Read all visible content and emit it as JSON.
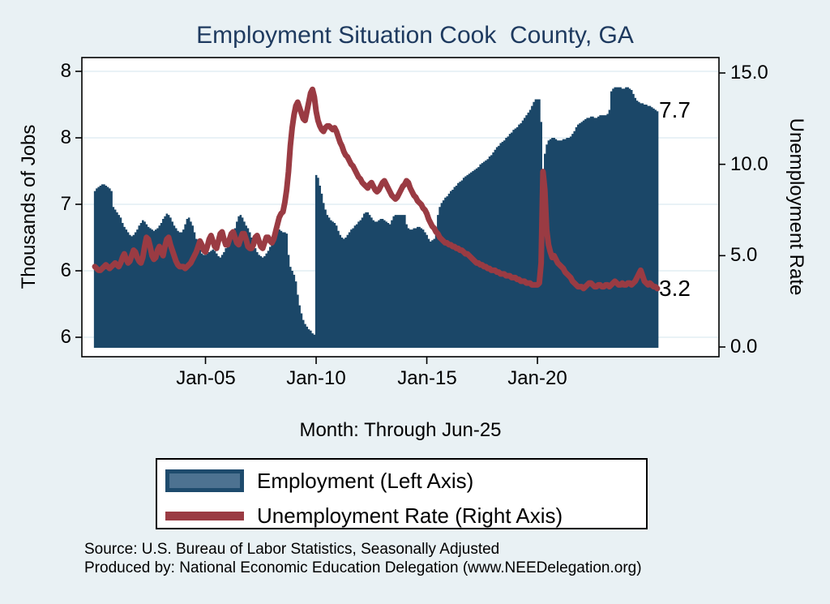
{
  "title": "Employment Situation Cook  County, GA",
  "axes": {
    "left_title": "Thousands of Jobs",
    "right_title": "Unemployment Rate",
    "x_title": "Month: Through Jun-25",
    "left_ticks": [
      {
        "value": 8.0,
        "label": "8"
      },
      {
        "value": 7.5,
        "label": "8"
      },
      {
        "value": 7.0,
        "label": "7"
      },
      {
        "value": 6.5,
        "label": "6"
      },
      {
        "value": 6.0,
        "label": "6"
      }
    ],
    "right_ticks": [
      {
        "value": 15.0,
        "label": "15.0"
      },
      {
        "value": 10.0,
        "label": "10.0"
      },
      {
        "value": 5.0,
        "label": "5.0"
      },
      {
        "value": 0.0,
        "label": "0.0"
      }
    ],
    "x_ticks": [
      {
        "month": "2005-01",
        "label": "Jan-05"
      },
      {
        "month": "2010-01",
        "label": "Jan-10"
      },
      {
        "month": "2015-01",
        "label": "Jan-15"
      },
      {
        "month": "2020-01",
        "label": "Jan-20"
      }
    ]
  },
  "annotations": {
    "last_employment": "7.7",
    "last_unemployment": "3.2"
  },
  "legend": {
    "items": [
      {
        "label": "Employment (Left Axis)",
        "swatch": "bar"
      },
      {
        "label": "Unemployment Rate (Right Axis)",
        "swatch": "line"
      }
    ]
  },
  "footer": {
    "line1": "Source: U.S. Bureau of Labor Statistics, Seasonally Adjusted",
    "line2": "Produced by: National Economic Education Delegation (www.NEEDelegation.org)"
  },
  "colors": {
    "page_background": "#e9f1f4",
    "plot_background": "#ffffff",
    "bar": "#1b4768",
    "line": "#9a3b43",
    "grid": "#dce9f0",
    "axis": "#000000",
    "title": "#1e3a5f",
    "legend_bar_fill": "#4d7291",
    "legend_bar_border": "#1e4b6d"
  },
  "chart_data": {
    "type": "bar",
    "title": "Employment Situation Cook  County, GA",
    "xlabel": "Month: Through Jun-25",
    "frequency": "monthly",
    "start_month": "2000-01",
    "end_month": "2025-06",
    "grid": true,
    "legend_position": "bottom",
    "left_axis": {
      "label": "Thousands of Jobs",
      "ylim": [
        5.87,
        8.1
      ],
      "tick_values": [
        6.0,
        6.5,
        7.0,
        7.5,
        8.0
      ],
      "tick_labels": [
        "6",
        "6",
        "7",
        "8",
        "8"
      ]
    },
    "right_axis": {
      "label": "Unemployment Rate",
      "ylim": [
        -0.4,
        15.8
      ],
      "tick_values": [
        0.0,
        5.0,
        10.0,
        15.0
      ],
      "tick_labels": [
        "0.0",
        "5.0",
        "10.0",
        "15.0"
      ]
    },
    "end_labels": {
      "employment": 7.7,
      "unemployment_rate": 3.2
    },
    "series": [
      {
        "name": "Employment (Left Axis)",
        "axis": "left",
        "type": "bar",
        "values": [
          7.1,
          7.12,
          7.13,
          7.14,
          7.15,
          7.15,
          7.14,
          7.13,
          7.12,
          7.1,
          6.98,
          6.96,
          6.94,
          6.92,
          6.9,
          6.86,
          6.83,
          6.81,
          6.79,
          6.77,
          6.76,
          6.77,
          6.79,
          6.81,
          6.84,
          6.86,
          6.88,
          6.87,
          6.85,
          6.83,
          6.82,
          6.81,
          6.8,
          6.81,
          6.82,
          6.84,
          6.86,
          6.89,
          6.91,
          6.93,
          6.92,
          6.9,
          6.87,
          6.84,
          6.82,
          6.8,
          6.79,
          6.79,
          6.81,
          6.85,
          6.89,
          6.9,
          6.87,
          6.84,
          6.79,
          6.74,
          6.7,
          6.66,
          6.63,
          6.62,
          6.62,
          6.63,
          6.64,
          6.65,
          6.66,
          6.65,
          6.63,
          6.61,
          6.6,
          6.62,
          6.64,
          6.67,
          6.69,
          6.71,
          6.74,
          6.78,
          6.82,
          6.87,
          6.91,
          6.92,
          6.9,
          6.87,
          6.84,
          6.82,
          6.79,
          6.75,
          6.71,
          6.67,
          6.64,
          6.62,
          6.61,
          6.6,
          6.61,
          6.63,
          6.65,
          6.68,
          6.72,
          6.76,
          6.8,
          6.81,
          6.81,
          6.8,
          6.79,
          6.79,
          6.78,
          6.62,
          6.53,
          6.5,
          6.47,
          6.42,
          6.32,
          6.24,
          6.18,
          6.13,
          6.1,
          6.08,
          6.06,
          6.05,
          6.03,
          6.02,
          7.22,
          7.2,
          7.14,
          7.08,
          7.01,
          6.96,
          6.92,
          6.9,
          6.88,
          6.87,
          6.86,
          6.84,
          6.8,
          6.77,
          6.75,
          6.74,
          6.75,
          6.77,
          6.79,
          6.81,
          6.82,
          6.84,
          6.85,
          6.87,
          6.88,
          6.9,
          6.93,
          6.94,
          6.94,
          6.92,
          6.9,
          6.88,
          6.87,
          6.87,
          6.88,
          6.89,
          6.89,
          6.88,
          6.87,
          6.86,
          6.85,
          6.88,
          6.91,
          6.92,
          6.92,
          6.92,
          6.92,
          6.92,
          6.92,
          6.85,
          6.82,
          6.81,
          6.81,
          6.82,
          6.82,
          6.83,
          6.83,
          6.82,
          6.81,
          6.79,
          6.77,
          6.74,
          6.72,
          6.73,
          6.74,
          6.78,
          6.92,
          6.98,
          7.01,
          7.03,
          7.05,
          7.06,
          7.08,
          7.1,
          7.11,
          7.13,
          7.14,
          7.16,
          7.17,
          7.18,
          7.2,
          7.21,
          7.22,
          7.23,
          7.24,
          7.25,
          7.26,
          7.27,
          7.28,
          7.3,
          7.31,
          7.32,
          7.33,
          7.34,
          7.36,
          7.37,
          7.39,
          7.41,
          7.43,
          7.44,
          7.46,
          7.47,
          7.48,
          7.5,
          7.51,
          7.53,
          7.54,
          7.56,
          7.57,
          7.58,
          7.6,
          7.61,
          7.63,
          7.65,
          7.67,
          7.69,
          7.71,
          7.74,
          7.77,
          7.79,
          7.79,
          7.79,
          7.62,
          7.24,
          7.38,
          7.45,
          7.48,
          7.49,
          7.5,
          7.5,
          7.49,
          7.48,
          7.48,
          7.48,
          7.49,
          7.49,
          7.5,
          7.5,
          7.51,
          7.53,
          7.55,
          7.58,
          7.6,
          7.61,
          7.62,
          7.63,
          7.64,
          7.65,
          7.65,
          7.66,
          7.66,
          7.65,
          7.65,
          7.66,
          7.67,
          7.67,
          7.67,
          7.67,
          7.68,
          7.71,
          7.85,
          7.87,
          7.88,
          7.88,
          7.88,
          7.88,
          7.87,
          7.87,
          7.88,
          7.88,
          7.87,
          7.86,
          7.83,
          7.8,
          7.78,
          7.77,
          7.76,
          7.76,
          7.75,
          7.75,
          7.74,
          7.74,
          7.73,
          7.72,
          7.71,
          7.7
        ]
      },
      {
        "name": "Unemployment Rate (Right Axis)",
        "axis": "right",
        "type": "line",
        "values": [
          4.4,
          4.3,
          4.2,
          4.2,
          4.3,
          4.4,
          4.5,
          4.4,
          4.3,
          4.4,
          4.5,
          4.6,
          4.5,
          4.4,
          4.6,
          4.9,
          5.1,
          4.8,
          4.6,
          4.7,
          5.0,
          5.3,
          5.2,
          4.9,
          4.7,
          4.6,
          4.9,
          5.5,
          6.0,
          5.9,
          5.5,
          5.0,
          4.8,
          4.9,
          5.3,
          5.5,
          5.2,
          5.0,
          5.5,
          5.9,
          6.0,
          5.6,
          5.3,
          5.0,
          4.7,
          4.5,
          4.4,
          4.4,
          4.4,
          4.3,
          4.4,
          4.5,
          4.6,
          4.8,
          5.0,
          5.2,
          5.5,
          5.8,
          5.6,
          5.3,
          5.2,
          5.5,
          5.9,
          6.1,
          5.8,
          5.5,
          5.4,
          5.8,
          6.2,
          6.3,
          5.9,
          5.6,
          5.6,
          5.9,
          6.2,
          6.3,
          6.0,
          5.7,
          5.6,
          5.9,
          6.2,
          6.2,
          5.9,
          5.5,
          5.4,
          5.4,
          5.6,
          6.0,
          6.1,
          5.8,
          5.5,
          5.4,
          5.7,
          6.0,
          6.0,
          5.8,
          5.7,
          5.9,
          6.3,
          6.7,
          7.1,
          7.3,
          7.4,
          7.9,
          8.6,
          9.6,
          11.0,
          12.0,
          12.7,
          13.2,
          13.4,
          13.1,
          12.8,
          12.5,
          12.4,
          12.9,
          13.4,
          13.9,
          14.1,
          13.7,
          12.9,
          12.4,
          12.1,
          11.9,
          11.8,
          12.0,
          12.1,
          12.1,
          12.0,
          11.9,
          12.0,
          11.8,
          11.5,
          11.2,
          11.0,
          10.7,
          10.5,
          10.4,
          10.2,
          10.0,
          9.9,
          9.7,
          9.5,
          9.3,
          9.2,
          9.0,
          8.9,
          8.8,
          8.7,
          8.9,
          9.0,
          8.8,
          8.6,
          8.5,
          8.6,
          8.8,
          9.0,
          9.1,
          8.9,
          8.7,
          8.5,
          8.3,
          8.2,
          8.1,
          8.2,
          8.4,
          8.6,
          8.8,
          8.9,
          9.1,
          9.0,
          8.7,
          8.5,
          8.3,
          8.2,
          8.0,
          7.9,
          7.8,
          7.6,
          7.5,
          7.3,
          7.0,
          6.8,
          6.6,
          6.5,
          6.3,
          6.2,
          6.0,
          5.9,
          5.8,
          5.7,
          5.7,
          5.6,
          5.6,
          5.5,
          5.5,
          5.4,
          5.4,
          5.3,
          5.3,
          5.2,
          5.1,
          5.1,
          5.0,
          4.9,
          4.8,
          4.7,
          4.6,
          4.6,
          4.5,
          4.5,
          4.4,
          4.4,
          4.3,
          4.3,
          4.2,
          4.2,
          4.2,
          4.1,
          4.1,
          4.0,
          4.0,
          4.0,
          3.9,
          3.9,
          3.9,
          3.8,
          3.8,
          3.8,
          3.7,
          3.7,
          3.6,
          3.6,
          3.6,
          3.5,
          3.5,
          3.5,
          3.4,
          3.4,
          3.4,
          3.4,
          3.5,
          4.6,
          9.6,
          8.6,
          6.4,
          5.6,
          5.2,
          4.9,
          5.0,
          4.8,
          4.6,
          4.5,
          4.4,
          4.3,
          4.1,
          4.0,
          3.9,
          3.8,
          3.6,
          3.5,
          3.4,
          3.3,
          3.3,
          3.3,
          3.2,
          3.3,
          3.4,
          3.5,
          3.5,
          3.4,
          3.3,
          3.3,
          3.4,
          3.4,
          3.3,
          3.3,
          3.4,
          3.4,
          3.3,
          3.4,
          3.5,
          3.6,
          3.5,
          3.4,
          3.4,
          3.5,
          3.4,
          3.4,
          3.5,
          3.5,
          3.4,
          3.5,
          3.6,
          3.8,
          4.0,
          4.2,
          3.9,
          3.6,
          3.5,
          3.4,
          3.5,
          3.4,
          3.3,
          3.3,
          3.2
        ]
      }
    ]
  }
}
